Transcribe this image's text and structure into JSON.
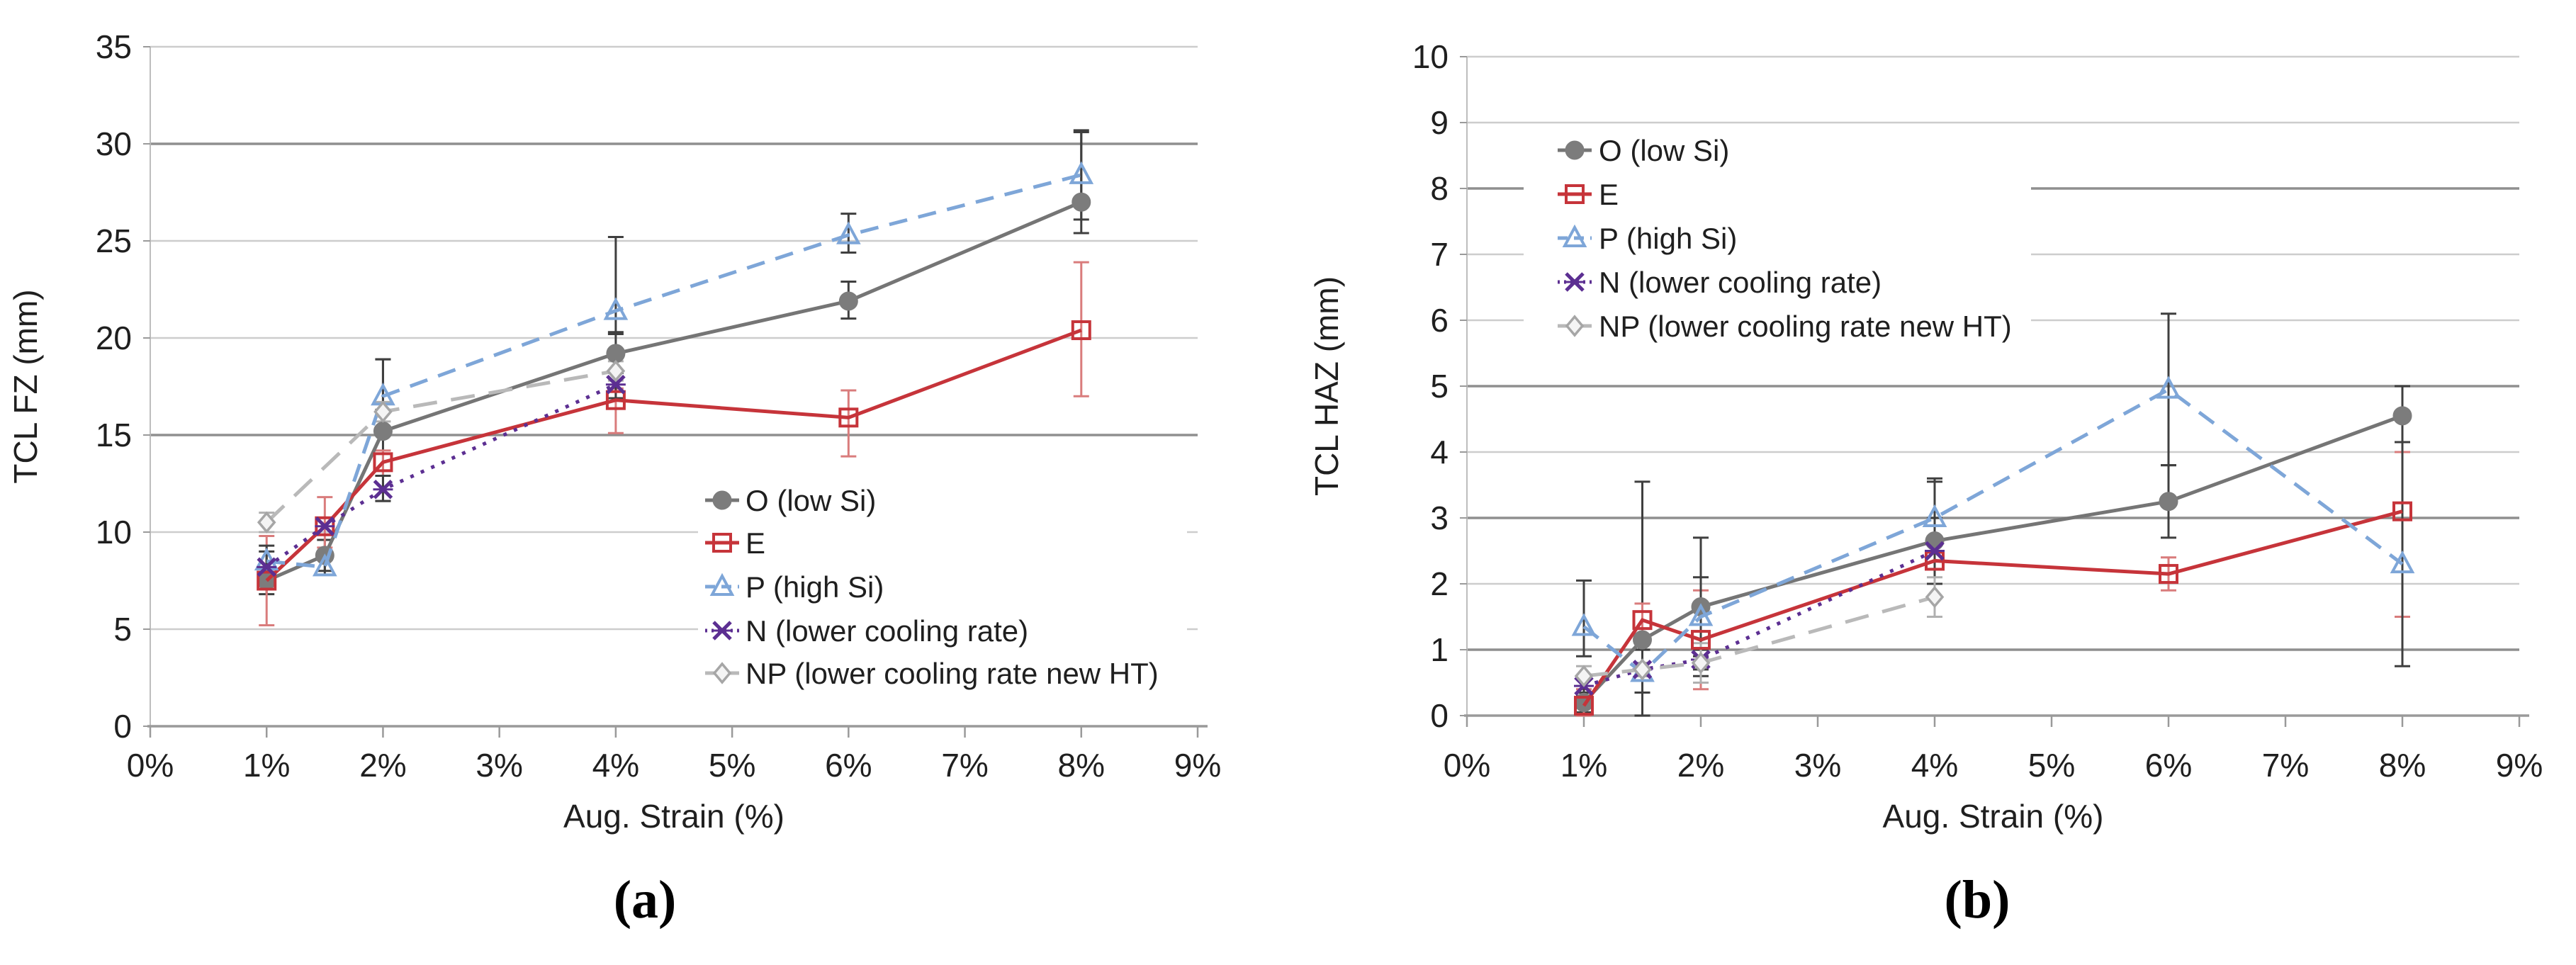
{
  "figure": {
    "background": "#ffffff",
    "caption_a": "(a)",
    "caption_b": "(b)",
    "x_axis_title": "Aug. Strain (%)"
  },
  "chart_data": [
    {
      "id": "a",
      "type": "line",
      "caption": "(a)",
      "xlabel": "Aug. Strain (%)",
      "ylabel": "TCL FZ (mm)",
      "xlim": [
        0,
        9
      ],
      "ylim": [
        0,
        35
      ],
      "grid": true,
      "legend_position": "inside-right-middle",
      "x_tick_labels": [
        "0%",
        "1%",
        "2%",
        "3%",
        "4%",
        "5%",
        "6%",
        "7%",
        "8%",
        "9%"
      ],
      "y_ticks": [
        0,
        5,
        10,
        15,
        20,
        25,
        30,
        35
      ],
      "dark_gridlines": [
        15,
        30
      ],
      "series": [
        {
          "name": "O (low Si)",
          "color": "#757575",
          "marker": "circle",
          "marker_color": "#7c7c7c",
          "dash": "solid",
          "err_color": "#3f3f3f",
          "points": [
            [
              1,
              7.5,
              6.8,
              8.2
            ],
            [
              1.5,
              8.8,
              8.0,
              9.6
            ],
            [
              2,
              15.2,
              11.6,
              18.9
            ],
            [
              4,
              19.2,
              18.2,
              20.3
            ],
            [
              6,
              21.9,
              21.0,
              22.9
            ],
            [
              8,
              27.0,
              25.4,
              30.6
            ]
          ]
        },
        {
          "name": "E",
          "color": "#c6343a",
          "marker": "square",
          "marker_color": "#c6343a",
          "dash": "solid",
          "err_color": "#d97c7c",
          "points": [
            [
              1,
              7.5,
              5.2,
              9.8
            ],
            [
              1.5,
              10.3,
              9.2,
              11.8
            ],
            [
              2,
              13.6,
              12.9,
              14.2
            ],
            [
              4,
              16.8,
              15.1,
              17.4
            ],
            [
              6,
              15.9,
              13.9,
              17.3
            ],
            [
              8,
              20.4,
              17.0,
              23.9
            ]
          ]
        },
        {
          "name": "P (high Si)",
          "color": "#7ea6d8",
          "marker": "triangle",
          "marker_color": "#7ea6d8",
          "dash": "26 16",
          "err_color": "#3f3f3f",
          "points": [
            [
              1,
              8.5,
              7.7,
              9.3
            ],
            [
              1.5,
              8.2,
              7.8,
              8.7
            ],
            [
              2,
              17.0,
              16.3,
              18.9
            ],
            [
              4,
              21.4,
              20.2,
              25.2
            ],
            [
              6,
              25.3,
              24.4,
              26.4
            ],
            [
              8,
              28.4,
              26.1,
              30.7
            ]
          ]
        },
        {
          "name": "N (lower cooling rate)",
          "color": "#5c2f92",
          "marker": "x",
          "marker_color": "#5c2f92",
          "dash": "5 11",
          "err_color": "#3f3f3f",
          "points": [
            [
              1,
              8.2,
              7.4,
              9.0
            ],
            [
              1.5,
              10.3,
              0,
              0
            ],
            [
              2,
              12.2,
              11.6,
              12.9
            ],
            [
              4,
              17.6,
              16.9,
              18.3
            ]
          ]
        },
        {
          "name": "NP (lower cooling rate new HT)",
          "color": "#b9b9b9",
          "marker": "diamond",
          "marker_color": "#a6a6a6",
          "dash": "34 20",
          "err_color": "#b0b0b0",
          "points": [
            [
              1,
              10.5,
              10.0,
              11.0
            ],
            [
              2,
              16.2,
              15.7,
              16.7
            ],
            [
              4,
              18.3,
              17.8,
              18.8
            ]
          ]
        }
      ]
    },
    {
      "id": "b",
      "type": "line",
      "caption": "(b)",
      "xlabel": "Aug. Strain (%)",
      "ylabel": "TCL HAZ (mm)",
      "xlim": [
        0,
        9
      ],
      "ylim": [
        0,
        10
      ],
      "grid": true,
      "legend_position": "inside-left-top",
      "x_tick_labels": [
        "0%",
        "1%",
        "2%",
        "3%",
        "4%",
        "5%",
        "6%",
        "7%",
        "8%",
        "9%"
      ],
      "y_ticks": [
        0,
        1,
        2,
        3,
        4,
        5,
        6,
        7,
        8,
        9,
        10
      ],
      "dark_gridlines": [
        1,
        3,
        5,
        8
      ],
      "series": [
        {
          "name": "O (low Si)",
          "color": "#757575",
          "marker": "circle",
          "marker_color": "#7c7c7c",
          "dash": "solid",
          "err_color": "#3f3f3f",
          "points": [
            [
              1,
              0.2,
              0.05,
              0.35
            ],
            [
              1.5,
              1.15,
              0.0,
              3.55
            ],
            [
              2,
              1.65,
              0.6,
              2.7
            ],
            [
              4,
              2.65,
              1.8,
              3.55
            ],
            [
              6,
              3.25,
              2.7,
              3.8
            ],
            [
              8,
              4.55,
              4.15,
              5.0
            ]
          ]
        },
        {
          "name": "E",
          "color": "#c6343a",
          "marker": "square",
          "marker_color": "#c6343a",
          "dash": "solid",
          "err_color": "#d97c7c",
          "points": [
            [
              1,
              0.15,
              0.0,
              0.4
            ],
            [
              1.5,
              1.45,
              1.2,
              1.7
            ],
            [
              2,
              1.15,
              0.4,
              1.9
            ],
            [
              4,
              2.35,
              1.5,
              2.6
            ],
            [
              6,
              2.15,
              1.9,
              2.4
            ],
            [
              8,
              3.1,
              1.5,
              4.0
            ]
          ]
        },
        {
          "name": "P (high Si)",
          "color": "#7ea6d8",
          "marker": "triangle",
          "marker_color": "#7ea6d8",
          "dash": "26 16",
          "err_color": "#3f3f3f",
          "points": [
            [
              1,
              1.35,
              0.9,
              2.05
            ],
            [
              1.5,
              0.65,
              0.35,
              1.0
            ],
            [
              2,
              1.5,
              0.9,
              2.1
            ],
            [
              4,
              3.0,
              2.5,
              3.6
            ],
            [
              6,
              4.95,
              3.8,
              6.1
            ],
            [
              8,
              2.3,
              0.75,
              5.0
            ]
          ]
        },
        {
          "name": "N (lower cooling rate)",
          "color": "#5c2f92",
          "marker": "x",
          "marker_color": "#5c2f92",
          "dash": "5 11",
          "err_color": "#3f3f3f",
          "points": [
            [
              1,
              0.45,
              0.3,
              0.6
            ],
            [
              1.5,
              0.7,
              0.6,
              0.8
            ],
            [
              2,
              0.85,
              0.7,
              1.0
            ],
            [
              4,
              2.5,
              2.0,
              3.0
            ]
          ]
        },
        {
          "name": "NP (lower cooling rate new HT)",
          "color": "#b9b9b9",
          "marker": "diamond",
          "marker_color": "#a6a6a6",
          "dash": "34 20",
          "err_color": "#b0b0b0",
          "points": [
            [
              1,
              0.6,
              0.45,
              0.75
            ],
            [
              1.5,
              0.7,
              0.6,
              0.8
            ],
            [
              2,
              0.8,
              0.5,
              1.1
            ],
            [
              4,
              1.8,
              1.5,
              2.1
            ]
          ]
        }
      ]
    }
  ]
}
